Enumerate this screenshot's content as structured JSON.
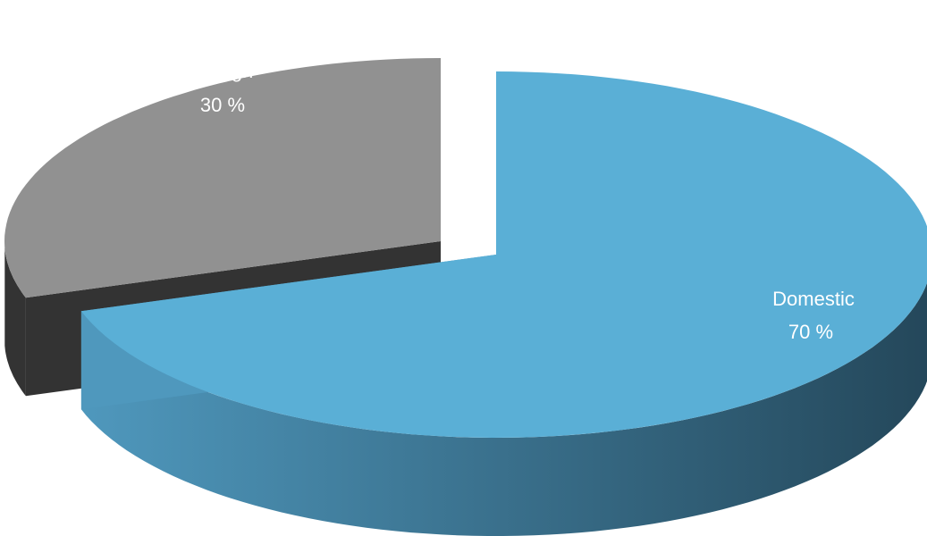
{
  "chart_data": {
    "type": "pie",
    "style": "3d-exploded",
    "legend": "none",
    "slices": [
      {
        "label": "Domestic",
        "value": 70,
        "value_text": "70 %",
        "color": "#5aafd6",
        "side_color_light": "#4f98bd",
        "side_color_dark": "#24475a"
      },
      {
        "label": "Foreign",
        "value": 30,
        "value_text": "30 %",
        "color": "#919191",
        "side_color_light": "#474747",
        "side_color_dark": "#333333"
      }
    ]
  }
}
